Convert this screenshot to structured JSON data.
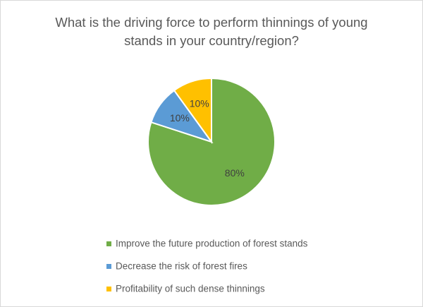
{
  "chart_data": {
    "type": "pie",
    "title": "What is the driving force to perform thinnings of young stands in your country/region?",
    "categories": [
      "Improve the future production of forest stands",
      "Decrease the risk of forest fires",
      "Profitability of such dense thinnings"
    ],
    "values": [
      80,
      10,
      10
    ],
    "value_labels": [
      "80%",
      "10%",
      "10%"
    ],
    "colors": [
      "#70ad47",
      "#5b9bd5",
      "#ffc000"
    ],
    "legend": "bottom"
  }
}
